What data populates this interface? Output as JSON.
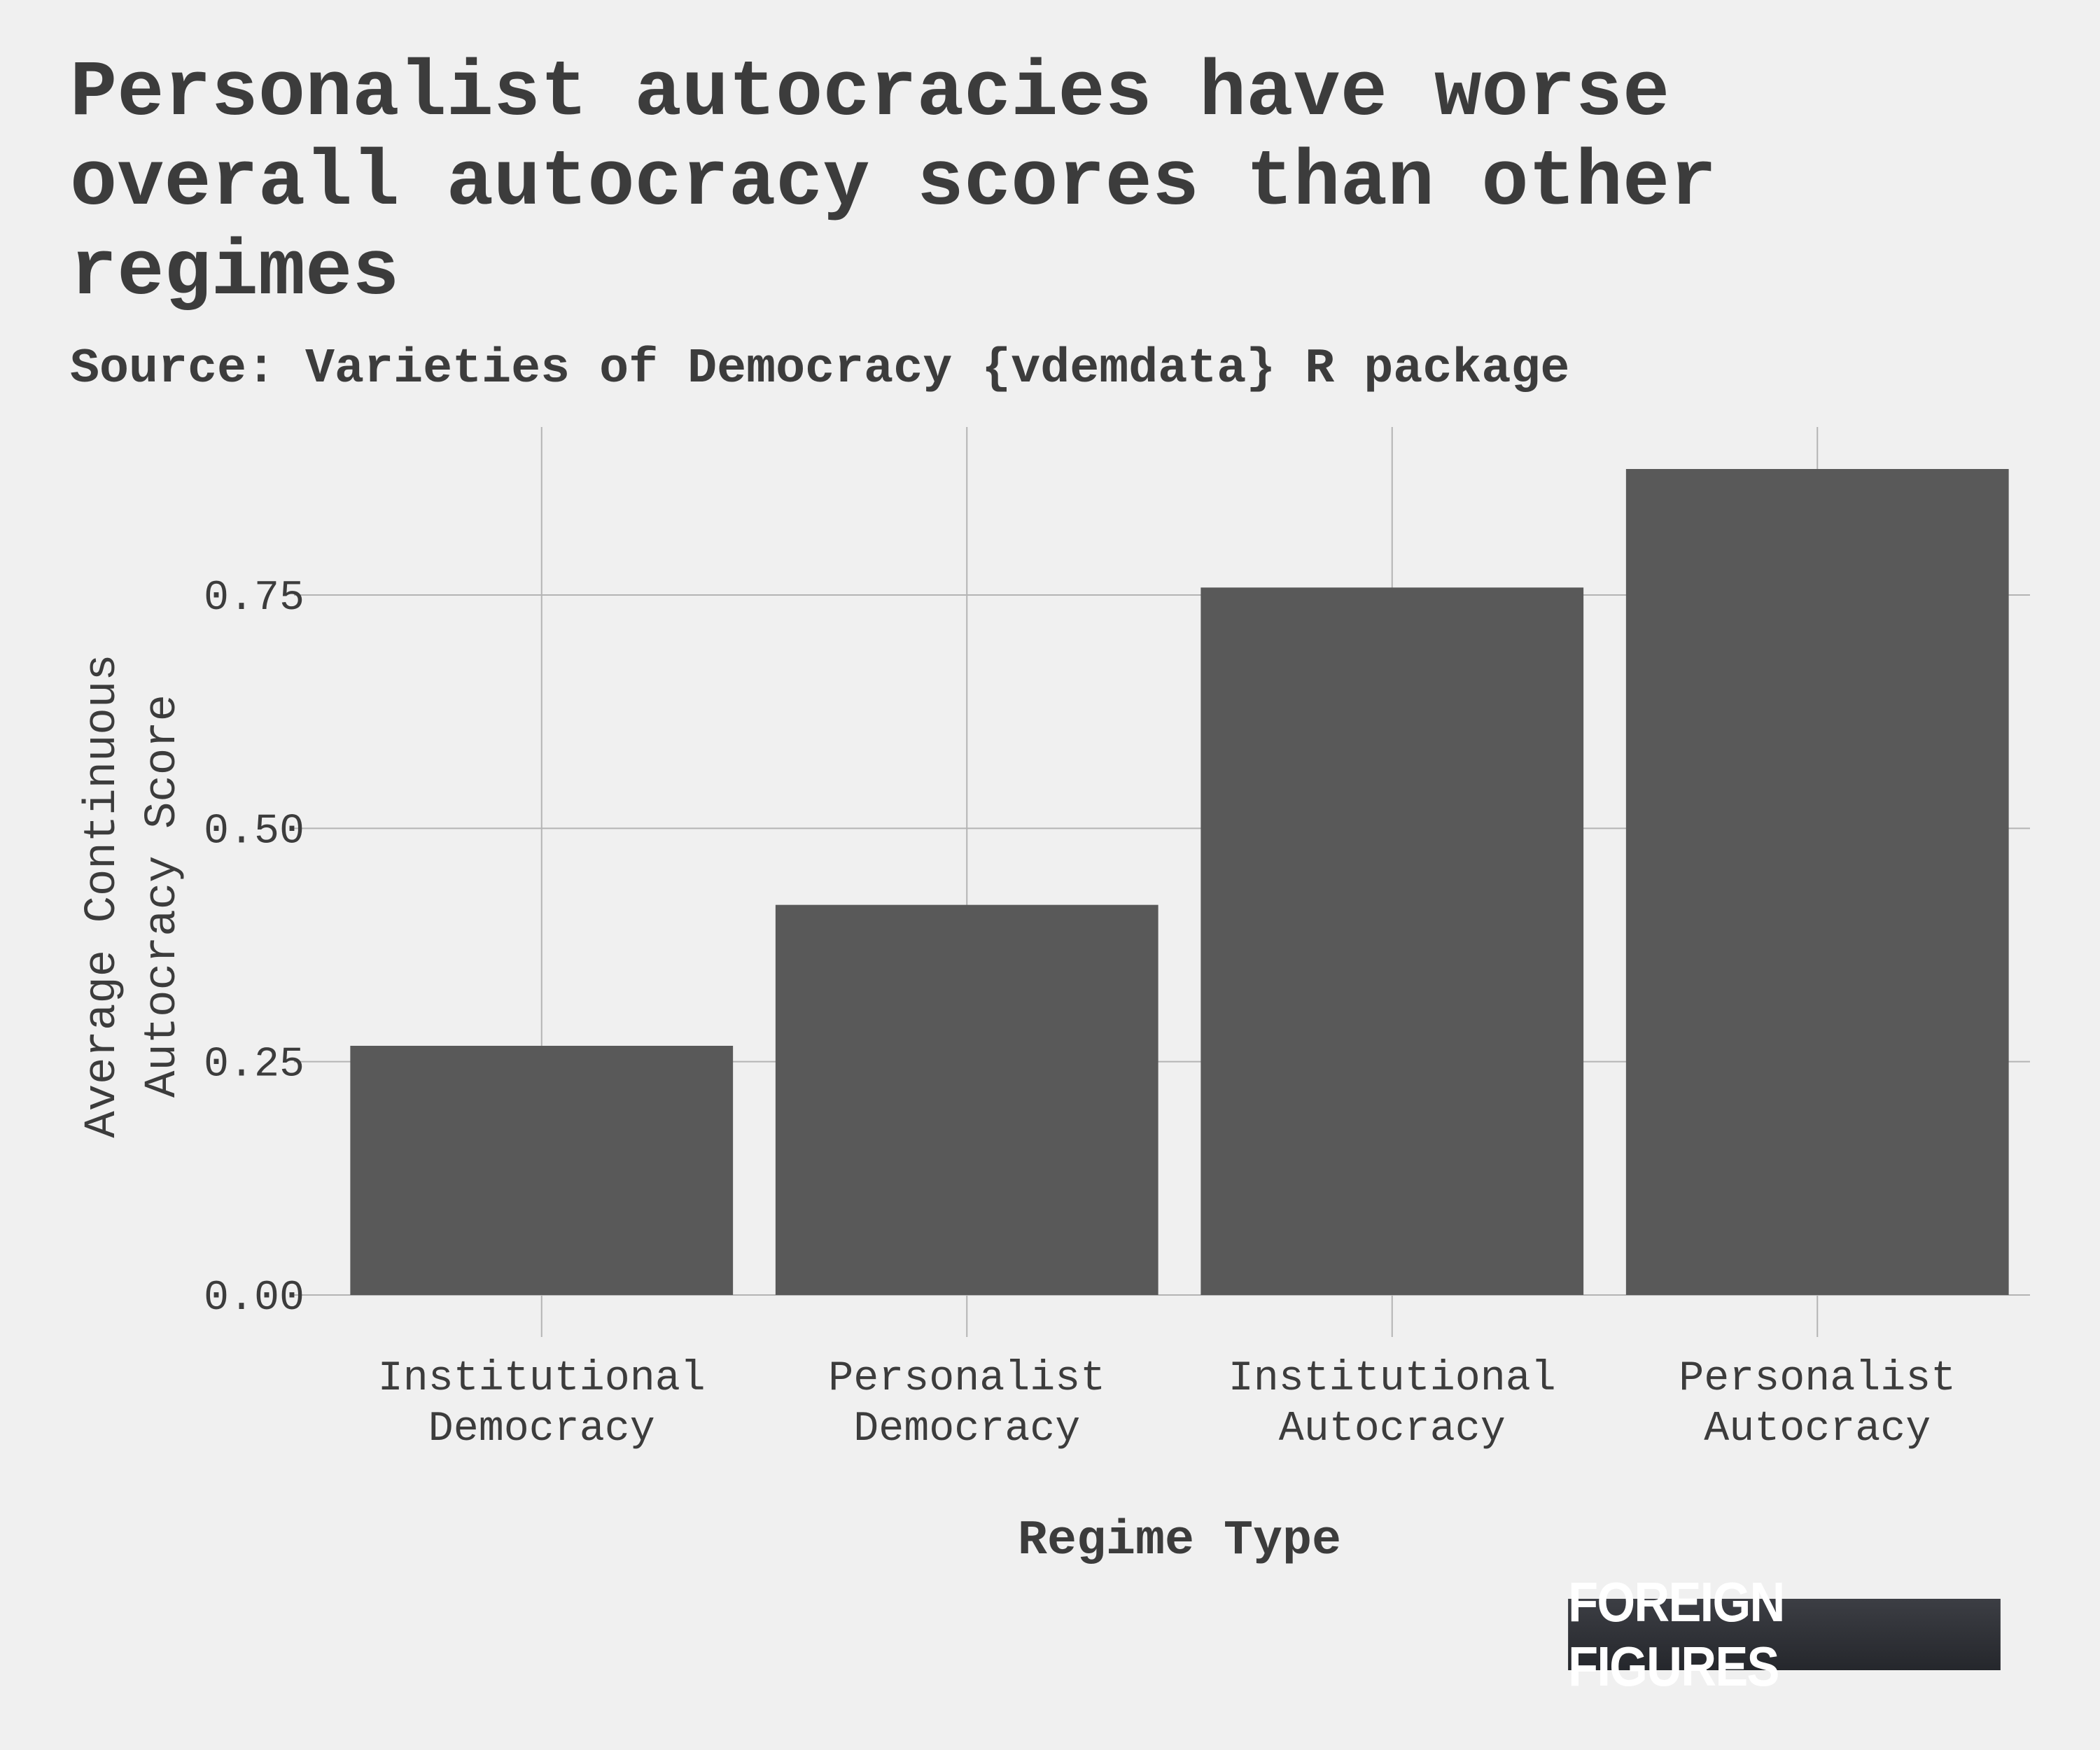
{
  "chart_data": {
    "type": "bar",
    "title": "Personalist autocracies have worse overall autocracy scores than other regimes",
    "subtitle": "Source: Varieties of Democracy {vdemdata} R package",
    "xlabel": "Regime Type",
    "ylabel": "Average Continuous\nAutocracy Score",
    "categories": [
      "Institutional\nDemocracy",
      "Personalist\nDemocracy",
      "Institutional\nAutocracy",
      "Personalist\nAutocracy"
    ],
    "values": [
      0.267,
      0.418,
      0.758,
      0.885
    ],
    "ylim": [
      0,
      0.93
    ],
    "yticks": [
      0.0,
      0.25,
      0.5,
      0.75
    ],
    "ytick_labels": [
      "0.00",
      "0.25",
      "0.50",
      "0.75"
    ],
    "grid": true,
    "bar_color": "#595959",
    "grid_color": "#b4b4b4"
  },
  "brand": {
    "label": "FOREIGN FIGURES"
  }
}
